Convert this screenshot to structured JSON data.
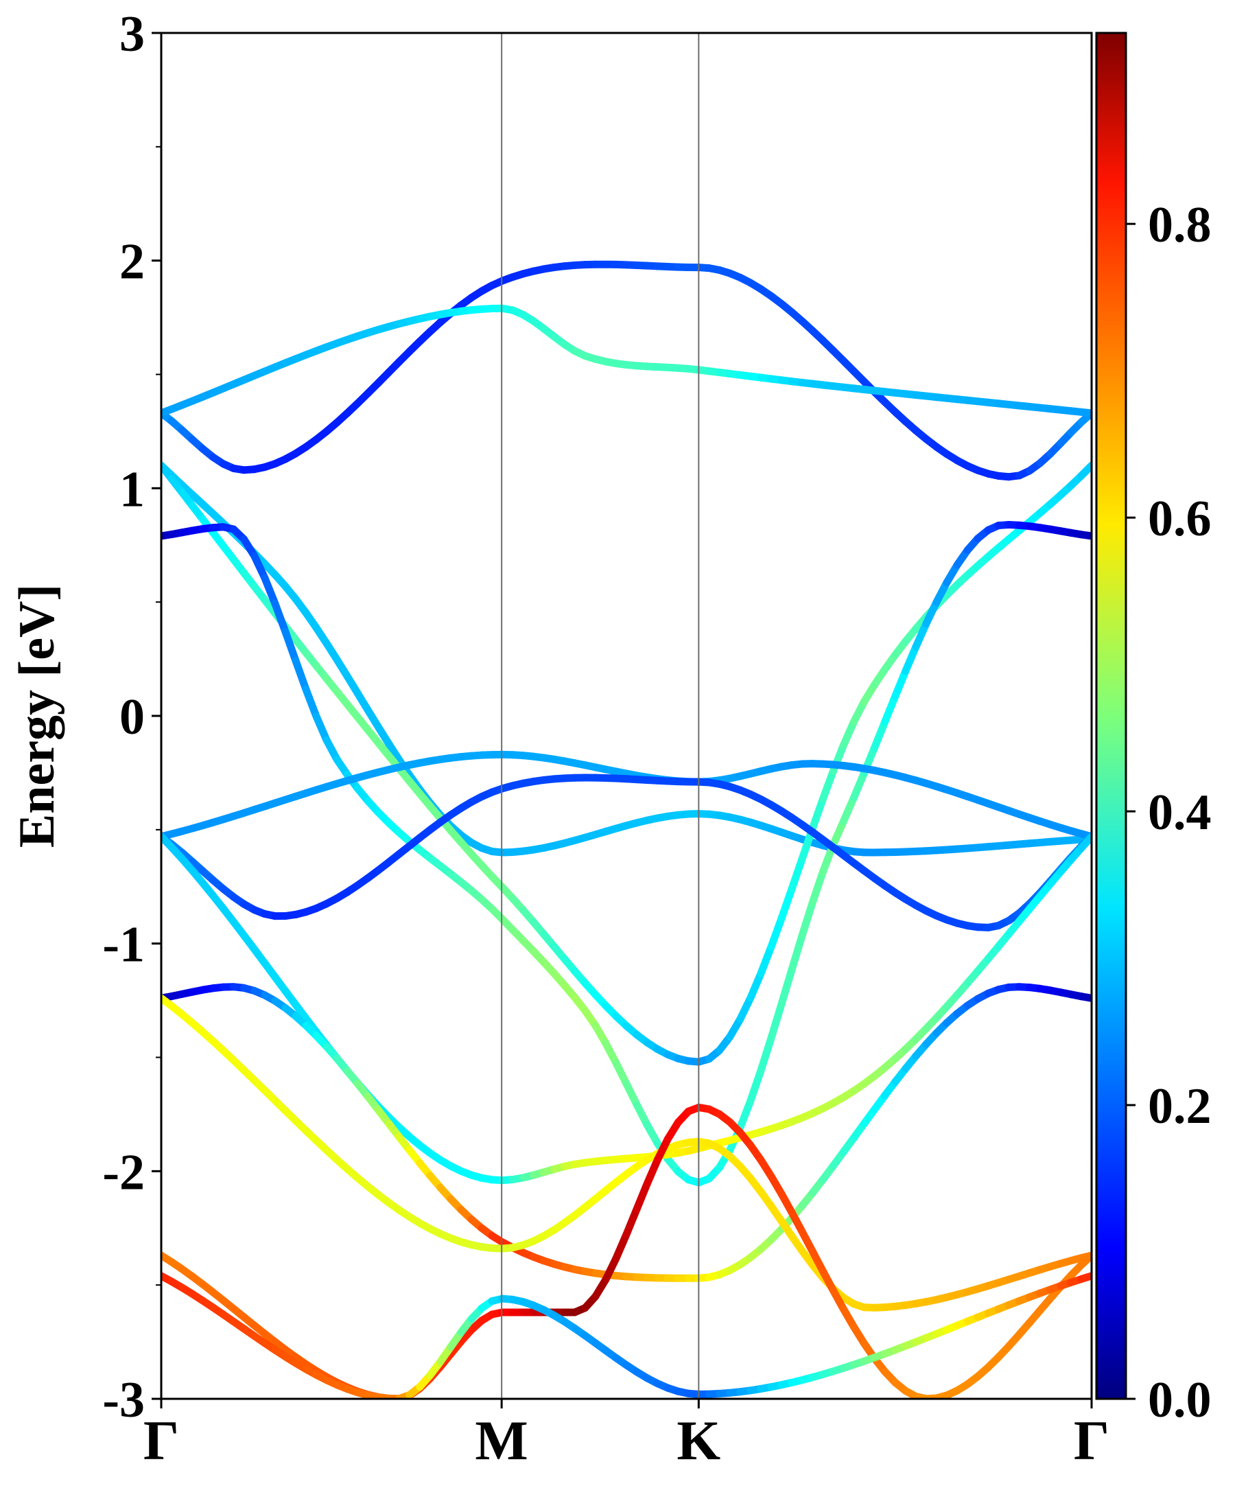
{
  "chart_data": {
    "type": "line",
    "title": "",
    "xlabel": "",
    "ylabel": "Energy [eV]",
    "ylim": [
      -3,
      3
    ],
    "yticks": [
      "3",
      "2",
      "1",
      "0",
      "-1",
      "-2",
      "-3"
    ],
    "ytick_values": [
      3,
      2,
      1,
      0,
      -1,
      -2,
      -3
    ],
    "yminor_ticks": [
      2.5,
      1.5,
      0.5,
      -0.5,
      -1.5,
      -2.5
    ],
    "kpath": {
      "labels": [
        "Γ",
        "M",
        "K",
        "Γ"
      ],
      "positions": [
        0.0,
        0.577,
        0.911,
        1.577
      ]
    },
    "grid": false,
    "colorbar": {
      "colormap": "jet",
      "range": [
        0.0,
        0.93
      ],
      "tick_labels": [
        "0.0",
        "0.2",
        "0.4",
        "0.6",
        "0.8"
      ],
      "tick_values": [
        0.0,
        0.2,
        0.4,
        0.6,
        0.8
      ]
    },
    "series": [
      {
        "k": [
          0.0,
          0.14,
          0.577,
          0.911,
          1.44,
          1.577
        ],
        "energy": [
          1.33,
          1.08,
          1.91,
          1.97,
          1.05,
          1.33
        ],
        "weight": [
          0.26,
          0.14,
          0.15,
          0.2,
          0.15,
          0.26
        ]
      },
      {
        "k": [
          0.0,
          0.4,
          0.577,
          0.72,
          0.911,
          1.1,
          1.577
        ],
        "energy": [
          1.33,
          1.72,
          1.79,
          1.58,
          1.52,
          1.46,
          1.33
        ],
        "weight": [
          0.26,
          0.3,
          0.36,
          0.42,
          0.4,
          0.3,
          0.26
        ]
      },
      {
        "k": [
          0.0,
          0.2,
          0.577,
          0.911,
          1.2,
          1.577
        ],
        "energy": [
          1.1,
          0.6,
          -0.6,
          -0.43,
          -0.6,
          -0.54
        ],
        "weight": [
          0.3,
          0.3,
          0.28,
          0.3,
          0.25,
          0.28
        ]
      },
      {
        "k": [
          0.0,
          0.3,
          0.577,
          0.911,
          1.2,
          1.577
        ],
        "energy": [
          1.1,
          0.1,
          -0.75,
          -1.52,
          0.1,
          1.1
        ],
        "weight": [
          0.3,
          0.45,
          0.45,
          0.25,
          0.45,
          0.3
        ]
      },
      {
        "k": [
          0.0,
          0.11,
          0.3,
          0.577,
          0.72,
          0.911,
          1.15,
          1.43,
          1.577
        ],
        "energy": [
          0.79,
          0.83,
          -0.2,
          -0.89,
          -1.3,
          -2.05,
          -0.5,
          0.84,
          0.79
        ],
        "weight": [
          0.05,
          0.15,
          0.3,
          0.45,
          0.5,
          0.35,
          0.45,
          0.15,
          0.05
        ]
      },
      {
        "k": [
          0.0,
          0.577,
          0.911,
          1.1,
          1.577
        ],
        "energy": [
          -0.53,
          -0.17,
          -0.29,
          -0.21,
          -0.53
        ],
        "weight": [
          0.25,
          0.27,
          0.27,
          0.25,
          0.25
        ]
      },
      {
        "k": [
          0.0,
          0.2,
          0.577,
          0.911,
          1.4,
          1.577
        ],
        "energy": [
          -0.53,
          -0.88,
          -0.32,
          -0.29,
          -0.93,
          -0.53
        ],
        "weight": [
          0.25,
          0.15,
          0.18,
          0.18,
          0.18,
          0.25
        ]
      },
      {
        "k": [
          0.0,
          0.577,
          0.7,
          0.911,
          1.2,
          1.577
        ],
        "energy": [
          -0.53,
          -2.04,
          -1.97,
          -1.9,
          -1.6,
          -0.53
        ],
        "weight": [
          0.3,
          0.35,
          0.55,
          0.6,
          0.5,
          0.3
        ]
      },
      {
        "k": [
          0.0,
          0.12,
          0.577,
          0.911,
          1.45,
          1.577
        ],
        "energy": [
          -1.24,
          -1.19,
          -2.31,
          -2.47,
          -1.19,
          -1.24
        ],
        "weight": [
          0.05,
          0.15,
          0.78,
          0.6,
          0.15,
          0.05
        ]
      },
      {
        "k": [
          0.0,
          0.577,
          0.911,
          1.2,
          1.577
        ],
        "energy": [
          -1.24,
          -2.34,
          -1.87,
          -2.6,
          -2.37
        ],
        "weight": [
          0.58,
          0.55,
          0.6,
          0.62,
          0.7
        ]
      },
      {
        "k": [
          0.0,
          0.4,
          0.577,
          0.7,
          0.911,
          1.3,
          1.577
        ],
        "energy": [
          -2.37,
          -3.0,
          -2.62,
          -2.62,
          -1.72,
          -3.0,
          -2.37
        ],
        "weight": [
          0.7,
          0.75,
          0.8,
          0.92,
          0.8,
          0.68,
          0.7
        ]
      },
      {
        "k": [
          0.0,
          0.4,
          0.577,
          0.911,
          1.577
        ],
        "energy": [
          -2.46,
          -3.0,
          -2.56,
          -2.98,
          -2.46
        ],
        "weight": [
          0.78,
          0.7,
          0.3,
          0.2,
          0.78
        ]
      }
    ]
  }
}
